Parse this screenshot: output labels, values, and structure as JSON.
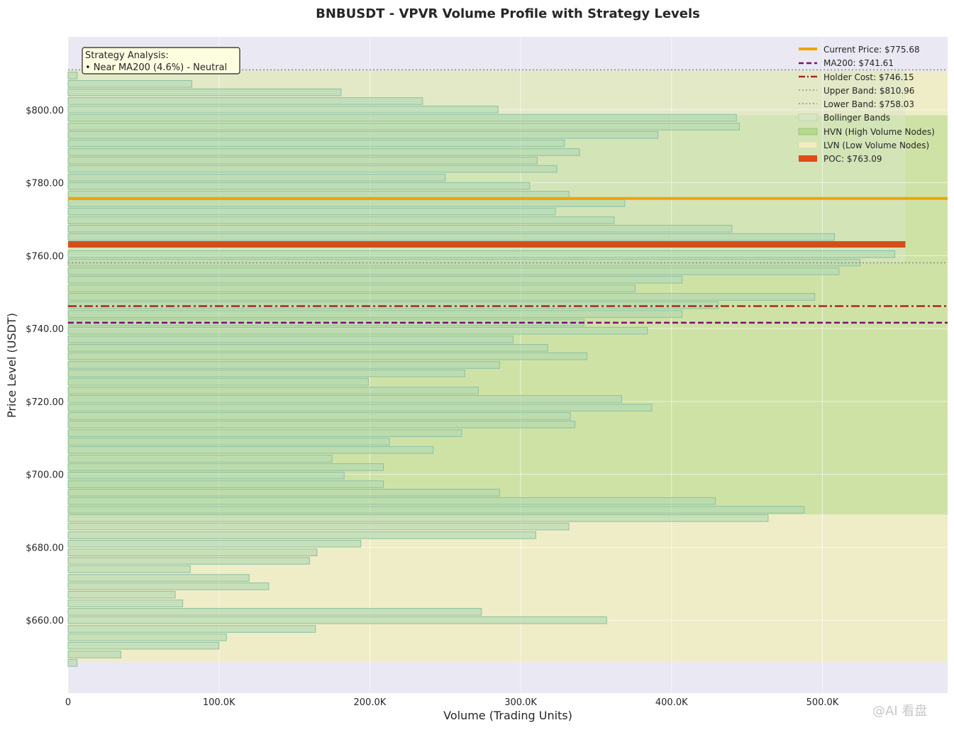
{
  "chart_data": {
    "type": "bar",
    "orientation": "horizontal",
    "title": "BNBUSDT - VPVR Volume Profile with Strategy Levels",
    "xlabel": "Volume (Trading Units)",
    "ylabel": "Price Level (USDT)",
    "xlim": [
      0,
      583000
    ],
    "ylim": [
      640,
      820
    ],
    "x_ticks": [
      {
        "value": 0,
        "label": "0"
      },
      {
        "value": 100000,
        "label": "100.0K"
      },
      {
        "value": 200000,
        "label": "200.0K"
      },
      {
        "value": 300000,
        "label": "300.0K"
      },
      {
        "value": 400000,
        "label": "400.0K"
      },
      {
        "value": 500000,
        "label": "500.0K"
      }
    ],
    "y_ticks": [
      {
        "value": 660,
        "label": "$660.00"
      },
      {
        "value": 680,
        "label": "$680.00"
      },
      {
        "value": 700,
        "label": "$700.00"
      },
      {
        "value": 720,
        "label": "$720.00"
      },
      {
        "value": 740,
        "label": "$740.00"
      },
      {
        "value": 760,
        "label": "$760.00"
      },
      {
        "value": 780,
        "label": "$780.00"
      },
      {
        "value": 800,
        "label": "$800.00"
      }
    ],
    "bin_height": 2.34,
    "bars": [
      {
        "price": 648.3,
        "volume": 6000
      },
      {
        "price": 650.6,
        "volume": 35000
      },
      {
        "price": 653.0,
        "volume": 100000
      },
      {
        "price": 655.3,
        "volume": 105000
      },
      {
        "price": 657.6,
        "volume": 164000
      },
      {
        "price": 660.0,
        "volume": 357000
      },
      {
        "price": 662.3,
        "volume": 274000
      },
      {
        "price": 664.6,
        "volume": 76000
      },
      {
        "price": 667.0,
        "volume": 71000
      },
      {
        "price": 669.3,
        "volume": 133000
      },
      {
        "price": 671.6,
        "volume": 120000
      },
      {
        "price": 674.0,
        "volume": 81000
      },
      {
        "price": 676.3,
        "volume": 160000
      },
      {
        "price": 678.6,
        "volume": 165000
      },
      {
        "price": 681.0,
        "volume": 194000
      },
      {
        "price": 683.3,
        "volume": 310000
      },
      {
        "price": 685.7,
        "volume": 332000
      },
      {
        "price": 688.0,
        "volume": 464000
      },
      {
        "price": 690.3,
        "volume": 488000
      },
      {
        "price": 692.7,
        "volume": 429000
      },
      {
        "price": 695.0,
        "volume": 286000
      },
      {
        "price": 697.3,
        "volume": 209000
      },
      {
        "price": 699.7,
        "volume": 183000
      },
      {
        "price": 702.0,
        "volume": 209000
      },
      {
        "price": 704.3,
        "volume": 175000
      },
      {
        "price": 706.7,
        "volume": 242000
      },
      {
        "price": 709.0,
        "volume": 213000
      },
      {
        "price": 711.3,
        "volume": 261000
      },
      {
        "price": 713.7,
        "volume": 336000
      },
      {
        "price": 716.0,
        "volume": 333000
      },
      {
        "price": 718.3,
        "volume": 387000
      },
      {
        "price": 720.7,
        "volume": 367000
      },
      {
        "price": 723.0,
        "volume": 272000
      },
      {
        "price": 725.4,
        "volume": 199000
      },
      {
        "price": 727.7,
        "volume": 263000
      },
      {
        "price": 730.0,
        "volume": 286000
      },
      {
        "price": 732.4,
        "volume": 344000
      },
      {
        "price": 734.7,
        "volume": 318000
      },
      {
        "price": 737.0,
        "volume": 295000
      },
      {
        "price": 739.4,
        "volume": 384000
      },
      {
        "price": 741.7,
        "volume": 342000
      },
      {
        "price": 744.0,
        "volume": 407000
      },
      {
        "price": 746.4,
        "volume": 431000
      },
      {
        "price": 748.7,
        "volume": 495000
      },
      {
        "price": 751.0,
        "volume": 376000
      },
      {
        "price": 753.4,
        "volume": 407000
      },
      {
        "price": 755.7,
        "volume": 511000
      },
      {
        "price": 758.1,
        "volume": 525000
      },
      {
        "price": 760.4,
        "volume": 548000
      },
      {
        "price": 763.09,
        "volume": 555000,
        "poc": true
      },
      {
        "price": 765.1,
        "volume": 508000
      },
      {
        "price": 767.4,
        "volume": 440000
      },
      {
        "price": 769.7,
        "volume": 362000
      },
      {
        "price": 772.1,
        "volume": 323000
      },
      {
        "price": 774.4,
        "volume": 369000
      },
      {
        "price": 776.7,
        "volume": 332000
      },
      {
        "price": 779.1,
        "volume": 306000
      },
      {
        "price": 781.4,
        "volume": 250000
      },
      {
        "price": 783.8,
        "volume": 324000
      },
      {
        "price": 786.1,
        "volume": 311000
      },
      {
        "price": 788.4,
        "volume": 339000
      },
      {
        "price": 790.8,
        "volume": 329000
      },
      {
        "price": 793.1,
        "volume": 391000
      },
      {
        "price": 795.4,
        "volume": 445000
      },
      {
        "price": 797.8,
        "volume": 443000
      },
      {
        "price": 800.1,
        "volume": 285000
      },
      {
        "price": 802.4,
        "volume": 235000
      },
      {
        "price": 804.8,
        "volume": 181000
      },
      {
        "price": 807.1,
        "volume": 82000
      },
      {
        "price": 809.4,
        "volume": 6000
      }
    ],
    "levels": {
      "current_price": {
        "value": 775.68,
        "label": "Current Price: $775.68",
        "color": "#f0a30a"
      },
      "ma200": {
        "value": 741.61,
        "label": "MA200: $741.61",
        "color": "#7b0f75"
      },
      "holder_cost": {
        "value": 746.15,
        "label": "Holder Cost: $746.15",
        "color": "#a52a1e"
      },
      "upper_band": {
        "value": 810.96,
        "label": "Upper Band: $810.96",
        "color": "#8f8f8f"
      },
      "lower_band": {
        "value": 758.03,
        "label": "Lower Band: $758.03",
        "color": "#8f8f8f"
      },
      "poc": {
        "value": 763.09,
        "label": "POC: $763.09",
        "color": "#d44e1a"
      }
    },
    "zones": {
      "bollinger": {
        "low": 758.03,
        "high": 810.96,
        "label": "Bollinger Bands",
        "color": "#d8e6c8"
      },
      "hvn": {
        "low": 689.0,
        "high": 798.5,
        "label": "HVN (High Volume Nodes)",
        "color": "#b5d98a"
      },
      "lvn": {
        "low": 648.5,
        "high": 810.5,
        "label": "LVN (Low Volume Nodes)",
        "color": "#f0edc0"
      }
    },
    "legend_position": "upper right",
    "grid": true,
    "annotation": {
      "line1": "Strategy Analysis:",
      "line2": "• Near MA200 (4.6%) - Neutral"
    },
    "colors": {
      "plot_bg": "#eae8f2",
      "bar_fill": "#b2d9b0",
      "bar_edge": "#8cbfa6"
    }
  },
  "watermark": {
    "text": "@AI 看盘"
  }
}
